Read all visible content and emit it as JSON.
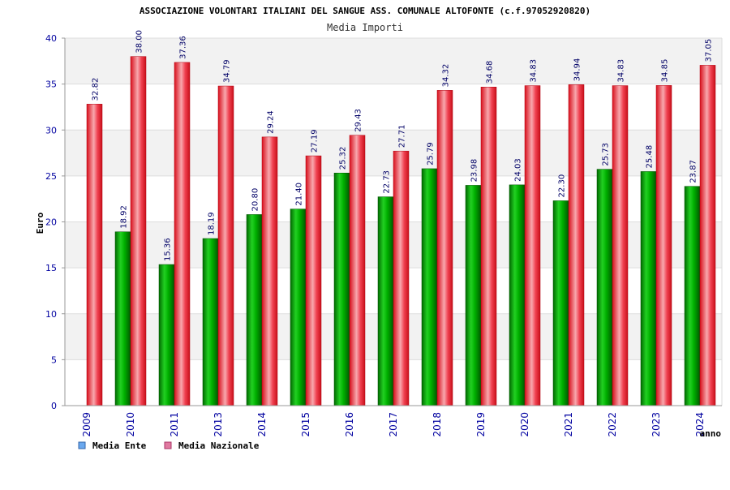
{
  "chart_data": {
    "type": "bar",
    "title": "ASSOCIAZIONE VOLONTARI ITALIANI DEL SANGUE ASS. COMUNALE ALTOFONTE (c.f.97052920820)",
    "subtitle": "Media Importi",
    "xlabel": "anno",
    "ylabel": "Euro",
    "ylim": [
      0,
      40
    ],
    "yticks": [
      0,
      5,
      10,
      15,
      20,
      25,
      30,
      35,
      40
    ],
    "categories": [
      "2009",
      "2010",
      "2011",
      "2013",
      "2014",
      "2015",
      "2016",
      "2017",
      "2018",
      "2019",
      "2020",
      "2021",
      "2022",
      "2023",
      "2024"
    ],
    "series": [
      {
        "name": "Media Ente",
        "color": "#00a000",
        "legend_color": "#6aa8ee",
        "values": [
          null,
          18.92,
          15.36,
          18.19,
          20.8,
          21.4,
          25.32,
          22.73,
          25.79,
          23.98,
          24.03,
          22.3,
          25.73,
          25.48,
          23.87
        ],
        "labels": [
          "",
          "18.92",
          "15.36",
          "18.19",
          "20.80",
          "21.40",
          "25.32",
          "22.73",
          "25.79",
          "23.98",
          "24.03",
          "22.30",
          "25.73",
          "25.48",
          "23.87"
        ]
      },
      {
        "name": "Media Nazionale",
        "color": "#e8202a",
        "legend_color": "#e07aa0",
        "values": [
          32.82,
          38.0,
          37.36,
          34.79,
          29.24,
          27.19,
          29.43,
          27.71,
          34.32,
          34.68,
          34.83,
          34.94,
          34.83,
          34.85,
          37.05
        ],
        "labels": [
          "32.82",
          "38.00",
          "37.36",
          "34.79",
          "29.24",
          "27.19",
          "29.43",
          "27.71",
          "34.32",
          "34.68",
          "34.83",
          "34.94",
          "34.83",
          "34.85",
          "37.05"
        ]
      }
    ],
    "legend_position": "bottom-left",
    "grid": true
  }
}
